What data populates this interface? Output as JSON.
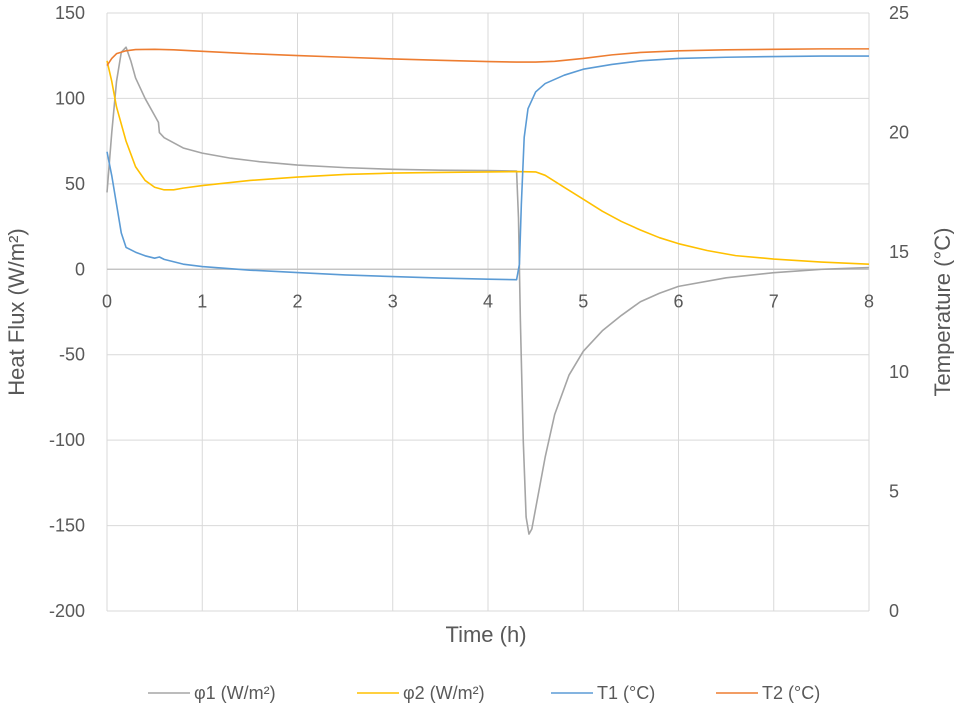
{
  "chart_data": {
    "type": "line",
    "xlabel": "Time (h)",
    "ylabel_left": "Heat Flux (W/m²)",
    "ylabel_right": "Temperature  (°C)",
    "xlim": [
      0,
      8
    ],
    "ylim_left": [
      -200,
      150
    ],
    "ylim_right": [
      0,
      25
    ],
    "x_ticks": [
      "0",
      "1",
      "2",
      "3",
      "4",
      "5",
      "6",
      "7",
      "8"
    ],
    "y_ticks_left": [
      "-200",
      "-150",
      "-100",
      "-50",
      "0",
      "50",
      "100",
      "150"
    ],
    "y_ticks_right": [
      "0",
      "5",
      "10",
      "15",
      "20",
      "25"
    ],
    "grid": true,
    "legend_position": "bottom",
    "series": [
      {
        "name": "φ1 (W/m²)",
        "axis": "left",
        "color": "#a5a5a5",
        "points": [
          [
            0,
            45
          ],
          [
            0.05,
            80
          ],
          [
            0.1,
            110
          ],
          [
            0.15,
            127
          ],
          [
            0.2,
            130
          ],
          [
            0.25,
            122
          ],
          [
            0.3,
            112
          ],
          [
            0.4,
            100
          ],
          [
            0.5,
            90
          ],
          [
            0.54,
            86
          ],
          [
            0.55,
            80
          ],
          [
            0.6,
            77
          ],
          [
            0.7,
            74
          ],
          [
            0.8,
            71
          ],
          [
            1,
            68
          ],
          [
            1.3,
            65
          ],
          [
            1.6,
            63
          ],
          [
            2,
            61
          ],
          [
            2.5,
            59.5
          ],
          [
            3,
            58.5
          ],
          [
            3.5,
            58
          ],
          [
            4,
            57.8
          ],
          [
            4.3,
            57.5
          ],
          [
            4.32,
            30
          ],
          [
            4.34,
            -30
          ],
          [
            4.37,
            -100
          ],
          [
            4.4,
            -145
          ],
          [
            4.43,
            -155
          ],
          [
            4.46,
            -152
          ],
          [
            4.5,
            -140
          ],
          [
            4.6,
            -110
          ],
          [
            4.7,
            -85
          ],
          [
            4.85,
            -62
          ],
          [
            5,
            -48
          ],
          [
            5.2,
            -36
          ],
          [
            5.4,
            -27
          ],
          [
            5.5,
            -23
          ],
          [
            5.6,
            -19
          ],
          [
            5.8,
            -14
          ],
          [
            6,
            -10
          ],
          [
            6.5,
            -5
          ],
          [
            7,
            -2
          ],
          [
            7.5,
            0
          ],
          [
            8,
            1
          ]
        ]
      },
      {
        "name": "φ2 (W/m²)",
        "axis": "left",
        "color": "#ffc000",
        "points": [
          [
            0,
            122
          ],
          [
            0.05,
            110
          ],
          [
            0.1,
            95
          ],
          [
            0.2,
            75
          ],
          [
            0.3,
            60
          ],
          [
            0.4,
            52
          ],
          [
            0.5,
            48
          ],
          [
            0.6,
            46.5
          ],
          [
            0.7,
            46.5
          ],
          [
            0.8,
            47.5
          ],
          [
            1,
            49
          ],
          [
            1.5,
            52
          ],
          [
            2,
            54
          ],
          [
            2.5,
            55.5
          ],
          [
            3,
            56.3
          ],
          [
            3.5,
            56.7
          ],
          [
            4,
            57
          ],
          [
            4.3,
            57.2
          ],
          [
            4.5,
            57
          ],
          [
            4.6,
            55
          ],
          [
            4.8,
            48
          ],
          [
            5,
            41
          ],
          [
            5.2,
            34
          ],
          [
            5.4,
            28
          ],
          [
            5.6,
            23
          ],
          [
            5.8,
            18.5
          ],
          [
            6,
            15
          ],
          [
            6.3,
            11
          ],
          [
            6.6,
            8
          ],
          [
            7,
            6
          ],
          [
            7.5,
            4.2
          ],
          [
            8,
            3
          ]
        ]
      },
      {
        "name": "T1 (°C)",
        "axis": "right",
        "color": "#5b9bd5",
        "points": [
          [
            0,
            19.2
          ],
          [
            0.05,
            18.2
          ],
          [
            0.1,
            17
          ],
          [
            0.15,
            15.8
          ],
          [
            0.2,
            15.2
          ],
          [
            0.3,
            15
          ],
          [
            0.4,
            14.85
          ],
          [
            0.5,
            14.75
          ],
          [
            0.55,
            14.8
          ],
          [
            0.6,
            14.7
          ],
          [
            0.8,
            14.5
          ],
          [
            1,
            14.4
          ],
          [
            1.5,
            14.25
          ],
          [
            2,
            14.15
          ],
          [
            2.5,
            14.05
          ],
          [
            3,
            13.98
          ],
          [
            3.5,
            13.92
          ],
          [
            4,
            13.87
          ],
          [
            4.3,
            13.85
          ],
          [
            4.33,
            14.5
          ],
          [
            4.35,
            17
          ],
          [
            4.38,
            19.8
          ],
          [
            4.42,
            21
          ],
          [
            4.5,
            21.7
          ],
          [
            4.6,
            22.05
          ],
          [
            4.8,
            22.4
          ],
          [
            5,
            22.65
          ],
          [
            5.3,
            22.85
          ],
          [
            5.5,
            22.95
          ],
          [
            5.6,
            23
          ],
          [
            6,
            23.1
          ],
          [
            6.5,
            23.15
          ],
          [
            7,
            23.18
          ],
          [
            7.5,
            23.2
          ],
          [
            8,
            23.2
          ]
        ]
      },
      {
        "name": "T2 (°C)",
        "axis": "right",
        "color": "#ed7d31",
        "points": [
          [
            0,
            22.8
          ],
          [
            0.05,
            23.1
          ],
          [
            0.1,
            23.3
          ],
          [
            0.2,
            23.42
          ],
          [
            0.3,
            23.47
          ],
          [
            0.5,
            23.48
          ],
          [
            0.7,
            23.46
          ],
          [
            1,
            23.4
          ],
          [
            1.5,
            23.3
          ],
          [
            2,
            23.22
          ],
          [
            2.5,
            23.15
          ],
          [
            3,
            23.08
          ],
          [
            3.5,
            23.02
          ],
          [
            4,
            22.97
          ],
          [
            4.3,
            22.95
          ],
          [
            4.5,
            22.95
          ],
          [
            4.7,
            22.98
          ],
          [
            5,
            23.1
          ],
          [
            5.3,
            23.25
          ],
          [
            5.6,
            23.35
          ],
          [
            6,
            23.42
          ],
          [
            6.5,
            23.46
          ],
          [
            7,
            23.48
          ],
          [
            7.5,
            23.5
          ],
          [
            8,
            23.5
          ]
        ]
      }
    ]
  }
}
